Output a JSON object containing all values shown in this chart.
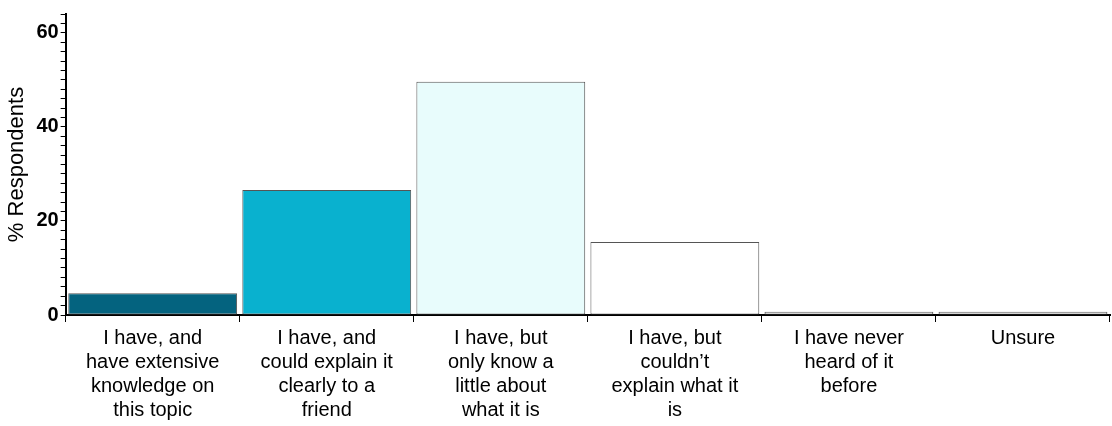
{
  "chart_data": {
    "type": "bar",
    "ylabel": "% Respondents",
    "categories": [
      "I have, and have extensive knowledge on this topic",
      "I have, and could explain it clearly to a friend",
      "I have, but only know a little about what it is",
      "I have, but couldn’t explain what it is",
      "I have never heard of it before",
      "Unsure"
    ],
    "values": [
      4.6,
      26.6,
      49.6,
      15.5,
      0.7,
      0.7
    ],
    "colors": [
      "#04637f",
      "#09b1cf",
      "#e8fcfc",
      "#ffffff",
      "#ffffff",
      "#ffffff"
    ],
    "ylim": [
      0,
      64
    ],
    "yticks": [
      0,
      {
        "value": 2,
        "label": null
      },
      {
        "value": 4,
        "label": null
      },
      {
        "value": 6,
        "label": null
      },
      {
        "value": 8,
        "label": null
      },
      {
        "value": 10,
        "label": null
      },
      {
        "value": 12,
        "label": null
      },
      {
        "value": 14,
        "label": null
      },
      {
        "value": 16,
        "label": null
      },
      {
        "value": 18,
        "label": null
      },
      20,
      {
        "value": 22,
        "label": null
      },
      {
        "value": 24,
        "label": null
      },
      {
        "value": 26,
        "label": null
      },
      {
        "value": 28,
        "label": null
      },
      {
        "value": 30,
        "label": null
      },
      {
        "value": 32,
        "label": null
      },
      {
        "value": 34,
        "label": null
      },
      {
        "value": 36,
        "label": null
      },
      {
        "value": 38,
        "label": null
      },
      40,
      {
        "value": 42,
        "label": null
      },
      {
        "value": 44,
        "label": null
      },
      {
        "value": 46,
        "label": null
      },
      {
        "value": 48,
        "label": null
      },
      {
        "value": 50,
        "label": null
      },
      {
        "value": 52,
        "label": null
      },
      {
        "value": 54,
        "label": null
      },
      {
        "value": 56,
        "label": null
      },
      {
        "value": 58,
        "label": null
      },
      60,
      {
        "value": 62,
        "label": null
      },
      {
        "value": 64,
        "label": null
      }
    ],
    "grid": false,
    "legend": false
  }
}
